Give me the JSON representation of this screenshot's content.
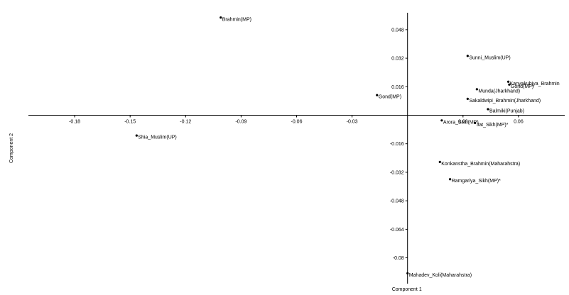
{
  "chart_data": {
    "type": "scatter",
    "xlabel": "Component 1",
    "ylabel": "Component 2",
    "xlim": [
      -0.205,
      0.085
    ],
    "ylim": [
      -0.0945,
      0.0575
    ],
    "x_ticks": [
      -0.18,
      -0.15,
      -0.12,
      -0.09,
      -0.06,
      -0.03,
      0.03,
      0.06
    ],
    "x_tick_labels": [
      "-0.18",
      "-0.15",
      "-0.12",
      "-0.09",
      "-0.06",
      "-0.03",
      "0.03",
      "0.06"
    ],
    "y_ticks": [
      0.048,
      0.032,
      0.016,
      -0.016,
      -0.032,
      -0.048,
      -0.064,
      -0.08
    ],
    "y_tick_labels": [
      "0.048",
      "0.032",
      "0.016",
      "-0.016",
      "-0.032",
      "-0.048",
      "-0.064",
      "-0.08"
    ],
    "grid": false,
    "legend": false,
    "points": [
      {
        "label": "Brahmin(MP)",
        "x": -0.101,
        "y": 0.0548
      },
      {
        "label": "Sunni_Muslim(UP)",
        "x": 0.0325,
        "y": 0.0333
      },
      {
        "label": "Kanyakubjya_Brahmin",
        "x": 0.0545,
        "y": 0.0188
      },
      {
        "label": "Gond(MP)",
        "x": 0.055,
        "y": 0.0172
      },
      {
        "label": "Munda(Jharkhand)",
        "x": 0.0375,
        "y": 0.0146
      },
      {
        "label": "Gond(MP)",
        "x": -0.0165,
        "y": 0.0113
      },
      {
        "label": "Sakaldwipi_Brahmin(Jharkhand)",
        "x": 0.0325,
        "y": 0.0092
      },
      {
        "label": "Balmiki(Punjab)",
        "x": 0.0435,
        "y": 0.0034
      },
      {
        "label": "Arora_Sikh(MP)",
        "x": 0.0185,
        "y": -0.0029
      },
      {
        "label": "Jat_Sikh(MP)*",
        "x": 0.0365,
        "y": -0.0043
      },
      {
        "label": "Shia_Muslim(UP)",
        "x": -0.1465,
        "y": -0.0114
      },
      {
        "label": "Konkanstha_Brahmin(Maharahstra)",
        "x": 0.0175,
        "y": -0.0262
      },
      {
        "label": "Ramgariya_Sikh(MP)*",
        "x": 0.023,
        "y": -0.0359
      },
      {
        "label": "Mahadev_Koli(Maharahstra)",
        "x": 0.0,
        "y": -0.0887
      }
    ]
  }
}
